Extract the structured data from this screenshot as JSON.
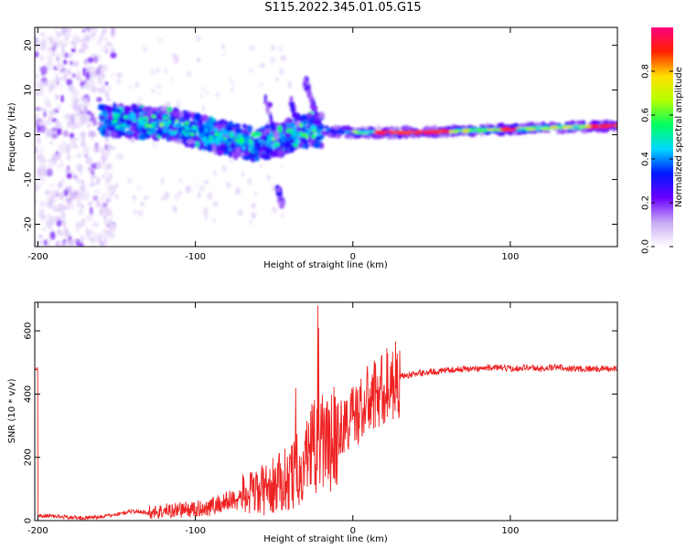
{
  "title": "S115.2022.345.01.05.G15",
  "chart_data": [
    {
      "type": "heatmap",
      "xlabel": "Height of straight line (km)",
      "ylabel": "Frequency (Hz)",
      "xlim": [
        -202,
        168
      ],
      "ylim": [
        -25,
        24
      ],
      "xticks": [
        -200,
        -100,
        0,
        100
      ],
      "yticks": [
        -20,
        -10,
        0,
        10,
        20
      ],
      "colorbar": {
        "label": "Normalized spectral amplitude",
        "range": [
          0,
          1
        ],
        "ticks": [
          0.0,
          0.2,
          0.4,
          0.6,
          0.8
        ],
        "colors": [
          "#ffffff",
          "#c9a9f5",
          "#6a00ff",
          "#0018ff",
          "#00d8ff",
          "#00ff60",
          "#b4ff00",
          "#ffe000",
          "#ff2200",
          "#ff0080"
        ]
      },
      "ridge": [
        {
          "x": -160,
          "f": 3
        },
        {
          "x": -140,
          "f": 3
        },
        {
          "x": -120,
          "f": 2.5
        },
        {
          "x": -100,
          "f": 1
        },
        {
          "x": -80,
          "f": -1
        },
        {
          "x": -60,
          "f": -2
        },
        {
          "x": -45,
          "f": -1
        },
        {
          "x": -35,
          "f": 1
        },
        {
          "x": -20,
          "f": 1
        },
        {
          "x": 0,
          "f": 0.5
        },
        {
          "x": 40,
          "f": 0.5
        },
        {
          "x": 80,
          "f": 1
        },
        {
          "x": 120,
          "f": 1.5
        },
        {
          "x": 168,
          "f": 2
        }
      ]
    },
    {
      "type": "line",
      "xlabel": "Height of straight line (km)",
      "ylabel": "SNR (10 * v/v)",
      "xlim": [
        -202,
        168
      ],
      "ylim": [
        0,
        690
      ],
      "xticks": [
        -200,
        -100,
        0,
        100
      ],
      "yticks": [
        0,
        200,
        400,
        600
      ],
      "color": "#ee2222",
      "grid": false,
      "x": [
        -200,
        -190,
        -180,
        -170,
        -160,
        -150,
        -140,
        -130,
        -120,
        -110,
        -100,
        -90,
        -80,
        -70,
        -60,
        -50,
        -40,
        -35,
        -30,
        -25,
        -20,
        -15,
        -10,
        -5,
        0,
        5,
        10,
        15,
        20,
        25,
        30,
        40,
        50,
        60,
        70,
        80,
        90,
        100,
        110,
        120,
        130,
        140,
        150,
        160,
        168
      ],
      "y": [
        15,
        15,
        10,
        8,
        12,
        20,
        30,
        25,
        30,
        35,
        35,
        45,
        60,
        75,
        90,
        110,
        140,
        160,
        190,
        250,
        260,
        230,
        280,
        300,
        330,
        350,
        380,
        400,
        420,
        440,
        455,
        465,
        470,
        475,
        480,
        480,
        485,
        480,
        485,
        480,
        485,
        480,
        480,
        480,
        480
      ]
    }
  ]
}
